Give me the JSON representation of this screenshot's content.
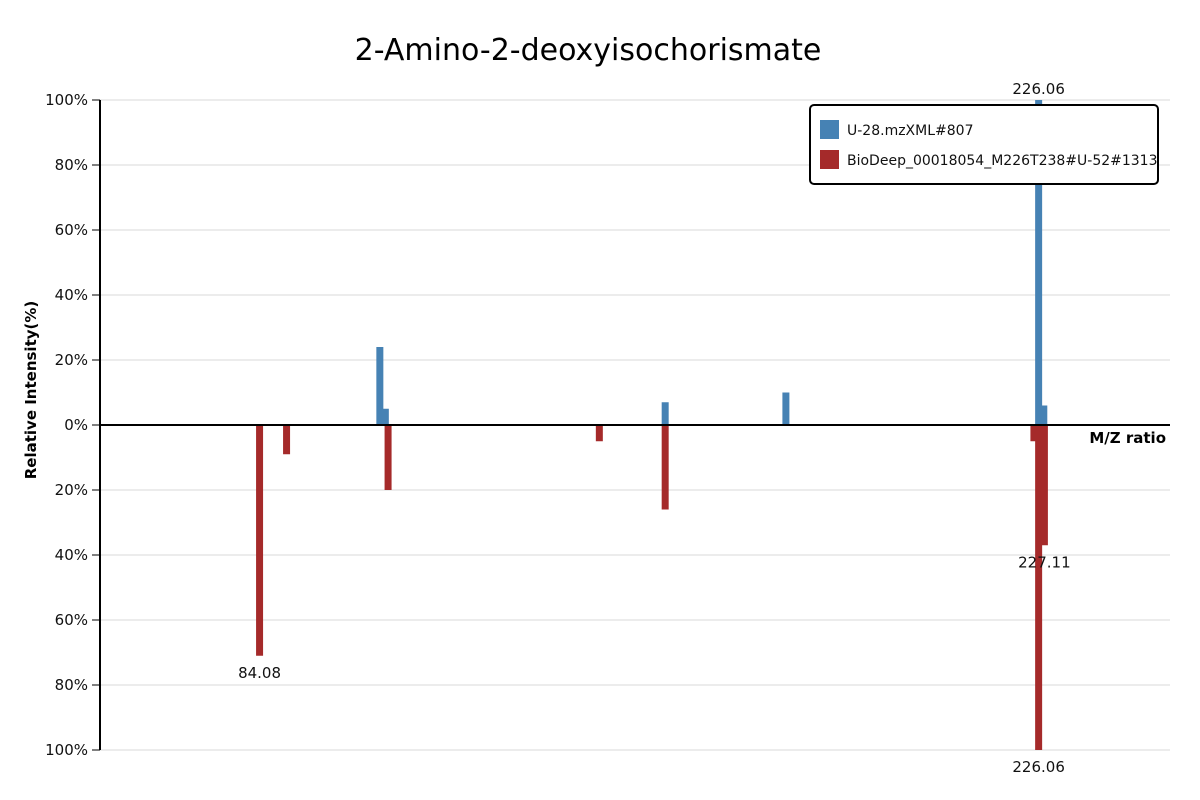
{
  "chart_data": {
    "type": "bar",
    "title": "2-Amino-2-deoxyisochorismate",
    "ylabel": "Relative Intensity(%)",
    "xlabel": "M/Z ratio",
    "xlim": [
      55,
      250
    ],
    "ylim": [
      -100,
      100
    ],
    "y_ticks": [
      {
        "value": 100,
        "label": "100%"
      },
      {
        "value": 80,
        "label": "80%"
      },
      {
        "value": 60,
        "label": "60%"
      },
      {
        "value": 40,
        "label": "40%"
      },
      {
        "value": 20,
        "label": "20%"
      },
      {
        "value": 0,
        "label": "0%"
      },
      {
        "value": -20,
        "label": "20%"
      },
      {
        "value": -40,
        "label": "40%"
      },
      {
        "value": -60,
        "label": "60%"
      },
      {
        "value": -80,
        "label": "80%"
      },
      {
        "value": -100,
        "label": "100%"
      }
    ],
    "grid": true,
    "legend_position": "top-right",
    "series": [
      {
        "name": "U-28.mzXML#807",
        "color": "#4682b4",
        "direction": "up",
        "points": [
          {
            "mz": 106.0,
            "intensity": 24
          },
          {
            "mz": 107.0,
            "intensity": 5
          },
          {
            "mz": 158.0,
            "intensity": 7
          },
          {
            "mz": 180.0,
            "intensity": 10
          },
          {
            "mz": 226.06,
            "intensity": 100,
            "label": "226.06"
          },
          {
            "mz": 227.0,
            "intensity": 6
          }
        ]
      },
      {
        "name": "BioDeep_00018054_M226T238#U-52#1313",
        "color": "#a52a2a",
        "direction": "down",
        "points": [
          {
            "mz": 84.08,
            "intensity": 71,
            "label": "84.08"
          },
          {
            "mz": 89.0,
            "intensity": 9
          },
          {
            "mz": 107.5,
            "intensity": 20
          },
          {
            "mz": 146.0,
            "intensity": 5
          },
          {
            "mz": 158.0,
            "intensity": 26
          },
          {
            "mz": 225.2,
            "intensity": 5
          },
          {
            "mz": 226.06,
            "intensity": 100,
            "label": "226.06"
          },
          {
            "mz": 227.11,
            "intensity": 37,
            "label": "227.11"
          }
        ]
      }
    ]
  }
}
